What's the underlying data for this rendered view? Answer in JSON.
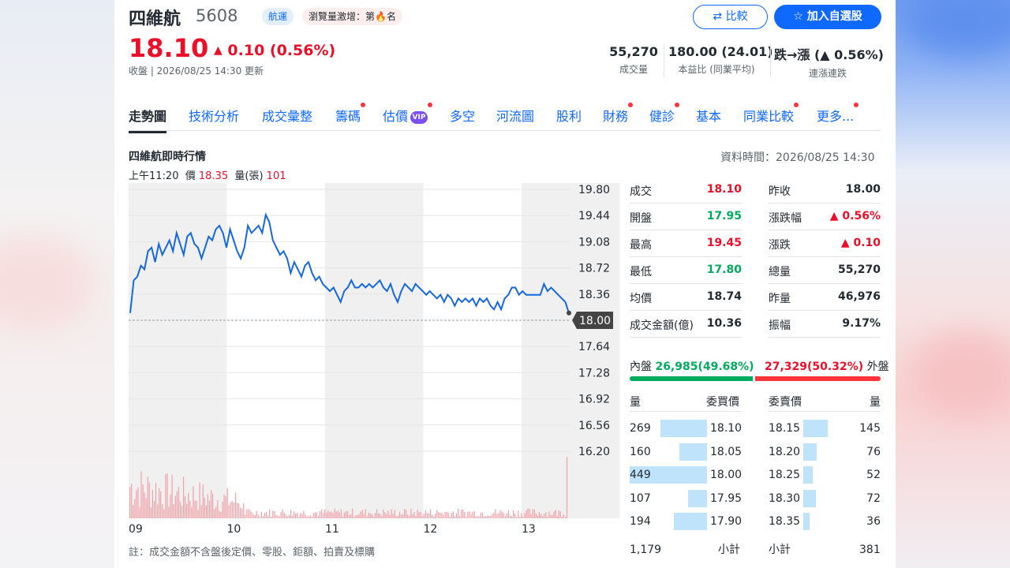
{
  "header": {
    "stock_name": "四維航",
    "stock_code": "5608",
    "industry_tag": "航運",
    "hot_tag_prefix": "瀏覽量激增：第",
    "hot_tag_suffix": "名",
    "compare_label": "比較",
    "add_watchlist_label": "加入自選股"
  },
  "quote": {
    "price": "18.10",
    "change": "0.10 (0.56%)",
    "status": "收盤 | 2026/08/25 14:30 更新"
  },
  "summary_stats": [
    {
      "value": "55,270",
      "label": "成交量"
    },
    {
      "value": "180.00 (24.01)",
      "label": "本益比 (同業平均)"
    },
    {
      "value": "跌→漲 (▲ 0.56%)",
      "label": "連漲連跌"
    }
  ],
  "tabs": [
    {
      "label": "走勢圖",
      "active": true,
      "dot": false
    },
    {
      "label": "技術分析",
      "dot": false
    },
    {
      "label": "成交彙整",
      "dot": false
    },
    {
      "label": "籌碼",
      "dot": true
    },
    {
      "label": "估價",
      "dot": true,
      "vip": "VIP"
    },
    {
      "label": "多空",
      "dot": false
    },
    {
      "label": "河流圖",
      "dot": false
    },
    {
      "label": "股利",
      "dot": false
    },
    {
      "label": "財務",
      "dot": true
    },
    {
      "label": "健診",
      "dot": true
    },
    {
      "label": "基本",
      "dot": false
    },
    {
      "label": "同業比較",
      "dot": true
    },
    {
      "label": "更多...",
      "dot": true
    }
  ],
  "chart_section": {
    "title": "四維航即時行情",
    "data_time": "資料時間：2026/08/25 14:30",
    "hover_time": "上午11:20",
    "hover_price_label": "價",
    "hover_price": "18.35",
    "hover_volume_label": "量(張)",
    "hover_volume": "101",
    "footnote": "註：成交金額不含盤後定價、零股、鉅額、拍賣及標購"
  },
  "chart_data": {
    "type": "line",
    "title": "",
    "x_tick_labels": [
      "09",
      "10",
      "11",
      "12",
      "13"
    ],
    "y_tick_labels": [
      "19.80",
      "19.44",
      "19.08",
      "18.72",
      "18.36",
      "18.00",
      "17.64",
      "17.28",
      "16.92",
      "16.56",
      "16.20"
    ],
    "ylim": [
      16.2,
      19.8
    ],
    "reference_price": 18.0,
    "reference_label": "18.00",
    "series": [
      {
        "values": [
          18.1,
          18.55,
          18.6,
          18.75,
          18.7,
          18.95,
          19.0,
          18.8,
          19.05,
          18.9,
          19.0,
          19.1,
          18.95,
          19.2,
          19.05,
          18.9,
          19.15,
          19.2,
          19.05,
          19.0,
          18.85,
          19.0,
          19.15,
          19.1,
          19.25,
          19.3,
          19.2,
          19.0,
          19.25,
          19.1,
          18.95,
          18.85,
          19.0,
          19.3,
          19.2,
          19.25,
          19.3,
          19.2,
          19.45,
          19.35,
          19.1,
          19.0,
          18.9,
          18.95,
          18.85,
          18.65,
          18.8,
          18.7,
          18.6,
          18.75,
          18.8,
          18.65,
          18.55,
          18.6,
          18.5,
          18.45,
          18.4,
          18.45,
          18.35,
          18.25,
          18.4,
          18.45,
          18.55,
          18.45,
          18.45,
          18.5,
          18.45,
          18.5,
          18.45,
          18.5,
          18.55,
          18.45,
          18.4,
          18.5,
          18.35,
          18.25,
          18.4,
          18.5,
          18.45,
          18.4,
          18.5,
          18.45,
          18.4,
          18.35,
          18.4,
          18.35,
          18.3,
          18.35,
          18.25,
          18.35,
          18.3,
          18.2,
          18.3,
          18.25,
          18.3,
          18.25,
          18.3,
          18.2,
          18.3,
          18.25,
          18.3,
          18.2,
          18.15,
          18.25,
          18.15,
          18.3,
          18.35,
          18.45,
          18.45,
          18.35,
          18.4,
          18.35,
          18.35,
          18.35,
          18.35,
          18.35,
          18.5,
          18.4,
          18.45,
          18.4,
          18.35,
          18.3,
          18.25,
          18.1
        ]
      }
    ],
    "volume_max_level": 1.0,
    "grid": true
  },
  "details": {
    "left": [
      {
        "label": "成交",
        "value": "18.10",
        "color": "red"
      },
      {
        "label": "開盤",
        "value": "17.95",
        "color": "green"
      },
      {
        "label": "最高",
        "value": "19.45",
        "color": "red"
      },
      {
        "label": "最低",
        "value": "17.80",
        "color": "green"
      },
      {
        "label": "均價",
        "value": "18.74",
        "color": "black"
      },
      {
        "label": "成交金額(億)",
        "value": "10.36",
        "color": "black"
      }
    ],
    "right": [
      {
        "label": "昨收",
        "value": "18.00",
        "color": "black"
      },
      {
        "label": "漲跌幅",
        "value": "▲ 0.56%",
        "color": "red"
      },
      {
        "label": "漲跌",
        "value": "▲ 0.10",
        "color": "red"
      },
      {
        "label": "總量",
        "value": "55,270",
        "color": "black"
      },
      {
        "label": "昨量",
        "value": "46,976",
        "color": "black"
      },
      {
        "label": "振幅",
        "value": "9.17%",
        "color": "black"
      }
    ]
  },
  "inner_outer": {
    "inner_label": "內盤",
    "inner_value": "26,985(49.68%)",
    "outer_value": "27,329(50.32%)",
    "outer_label": "外盤"
  },
  "order_book": {
    "bid_header_qty": "量",
    "bid_header_price": "委買價",
    "ask_header_price": "委賣價",
    "ask_header_qty": "量",
    "bids": [
      {
        "qty": "269",
        "price": "18.10",
        "level": 0.6
      },
      {
        "qty": "160",
        "price": "18.05",
        "level": 0.36
      },
      {
        "qty": "449",
        "price": "18.00",
        "level": 1.0
      },
      {
        "qty": "107",
        "price": "17.95",
        "level": 0.24
      },
      {
        "qty": "194",
        "price": "17.90",
        "level": 0.43
      }
    ],
    "asks": [
      {
        "price": "18.15",
        "qty": "145",
        "level": 0.32
      },
      {
        "price": "18.20",
        "qty": "76",
        "level": 0.17
      },
      {
        "price": "18.25",
        "qty": "52",
        "level": 0.12
      },
      {
        "price": "18.30",
        "qty": "72",
        "level": 0.16
      },
      {
        "price": "18.35",
        "qty": "36",
        "level": 0.08
      }
    ],
    "bid_total": "1,179",
    "bid_total_label": "小計",
    "ask_total_label": "小計",
    "ask_total": "381"
  }
}
